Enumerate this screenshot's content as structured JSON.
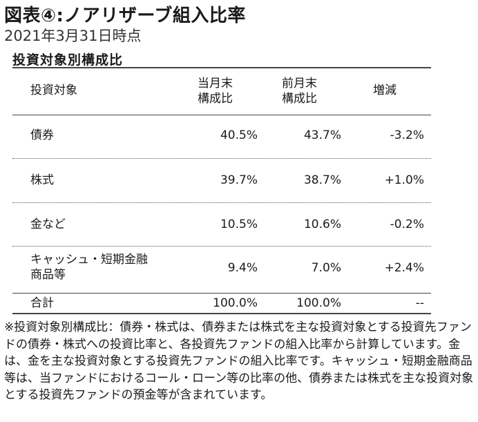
{
  "title": "図表④:ノアリザーブ組入比率",
  "date": "2021年3月31日時点",
  "section": "投資対象別構成比",
  "table": {
    "headers": {
      "item": "投資対象",
      "current_1": "当月末",
      "current_2": "構成比",
      "prev_1": "前月末",
      "prev_2": "構成比",
      "diff": "増減"
    },
    "rows": [
      {
        "item": "債券",
        "current": "40.5%",
        "prev": "43.7%",
        "diff": "-3.2%"
      },
      {
        "item": "株式",
        "current": "39.7%",
        "prev": "38.7%",
        "diff": "+1.0%"
      },
      {
        "item": "金など",
        "current": "10.5%",
        "prev": "10.6%",
        "diff": "-0.2%"
      },
      {
        "item_1": "キャッシュ・短期金融",
        "item_2": "商品等",
        "current": "9.4%",
        "prev": "7.0%",
        "diff": "+2.4%"
      }
    ],
    "total": {
      "item": "合計",
      "current": "100.0%",
      "prev": "100.0%",
      "diff": "--"
    }
  },
  "note": "※投資対象別構成比：債券・株式は、債券または株式を主な投資対象とする投資先ファンドの債券・株式への投資比率と、各投資先ファンドの組入比率から計算しています。金は、金を主な投資対象とする投資先ファンドの組入比率です。キャッシュ・短期金融商品等は、当ファンドにおけるコール・ローン等の比率の他、債券または株式を主な投資対象とする投資先ファンドの預金等が含まれています。"
}
